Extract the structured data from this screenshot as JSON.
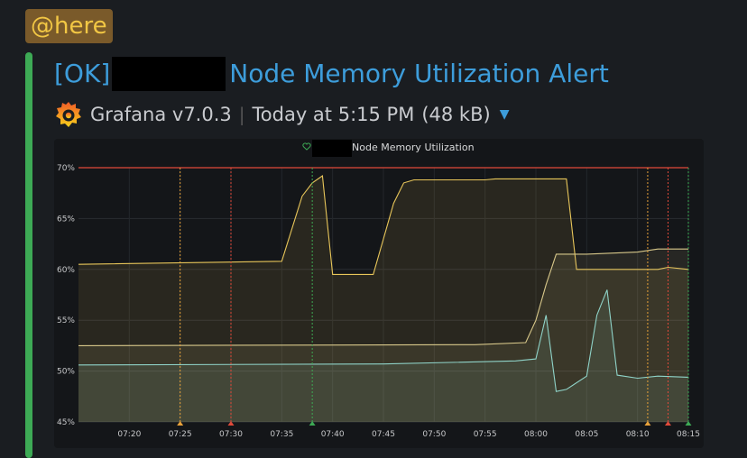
{
  "mention": {
    "label": "@here"
  },
  "alert": {
    "status": "[OK]",
    "name": "Node Memory Utilization Alert",
    "source": "Grafana v7.0.3",
    "time": "Today at 5:15 PM",
    "size": "(48 kB)"
  },
  "colors": {
    "mention_bg": "#7a5a2a",
    "mention_text": "#f2c744",
    "status_bar": "#3daa55",
    "link": "#3d9ddb",
    "threshold": "#e04a3a",
    "series_1": "#e8c65a",
    "series_2": "#d8c88a",
    "series_3": "#8fd3c8"
  },
  "chart_data": {
    "type": "area",
    "title": "Node Memory Utilization",
    "x_ticks": [
      "07:20",
      "07:25",
      "07:30",
      "07:35",
      "07:40",
      "07:45",
      "07:50",
      "07:55",
      "08:00",
      "08:05",
      "08:10",
      "08:15"
    ],
    "y_ticks": [
      "45%",
      "50%",
      "55%",
      "60%",
      "65%",
      "70%"
    ],
    "ylim": [
      45,
      70
    ],
    "xlim": [
      "07:15",
      "08:15"
    ],
    "threshold": 70,
    "grid": true,
    "series": [
      {
        "color": "#e8c65a",
        "points": [
          [
            "07:15",
            60.5
          ],
          [
            "07:35",
            60.8
          ],
          [
            "07:36",
            64.0
          ],
          [
            "07:37",
            67.2
          ],
          [
            "07:38",
            68.5
          ],
          [
            "07:39",
            69.2
          ],
          [
            "07:40",
            59.5
          ],
          [
            "07:44",
            59.5
          ],
          [
            "07:45",
            63.0
          ],
          [
            "07:46",
            66.5
          ],
          [
            "07:47",
            68.5
          ],
          [
            "07:48",
            68.8
          ],
          [
            "07:55",
            68.8
          ],
          [
            "07:56",
            68.9
          ],
          [
            "08:03",
            68.9
          ],
          [
            "08:04",
            60.0
          ],
          [
            "08:10",
            60.0
          ],
          [
            "08:12",
            60.0
          ],
          [
            "08:13",
            60.2
          ],
          [
            "08:15",
            60.0
          ]
        ]
      },
      {
        "color": "#d8c88a",
        "points": [
          [
            "07:15",
            52.5
          ],
          [
            "07:54",
            52.6
          ],
          [
            "07:59",
            52.8
          ],
          [
            "08:00",
            55.0
          ],
          [
            "08:01",
            58.5
          ],
          [
            "08:02",
            61.5
          ],
          [
            "08:04",
            61.5
          ],
          [
            "08:05",
            61.5
          ],
          [
            "08:10",
            61.7
          ],
          [
            "08:12",
            62.0
          ],
          [
            "08:15",
            62.0
          ]
        ]
      },
      {
        "color": "#8fd3c8",
        "points": [
          [
            "07:15",
            50.6
          ],
          [
            "07:45",
            50.7
          ],
          [
            "07:58",
            51.0
          ],
          [
            "08:00",
            51.2
          ],
          [
            "08:01",
            55.5
          ],
          [
            "08:02",
            48.0
          ],
          [
            "08:03",
            48.2
          ],
          [
            "08:05",
            49.5
          ],
          [
            "08:06",
            55.5
          ],
          [
            "08:07",
            58.0
          ],
          [
            "08:08",
            49.6
          ],
          [
            "08:10",
            49.3
          ],
          [
            "08:12",
            49.5
          ],
          [
            "08:15",
            49.4
          ]
        ]
      }
    ],
    "annotations": [
      {
        "x": "07:25",
        "color": "#e8a23a"
      },
      {
        "x": "07:30",
        "color": "#e04a3a"
      },
      {
        "x": "07:38",
        "color": "#3daa55"
      },
      {
        "x": "08:11",
        "color": "#e8a23a"
      },
      {
        "x": "08:13",
        "color": "#e04a3a"
      },
      {
        "x": "08:15",
        "color": "#3daa55"
      }
    ]
  }
}
